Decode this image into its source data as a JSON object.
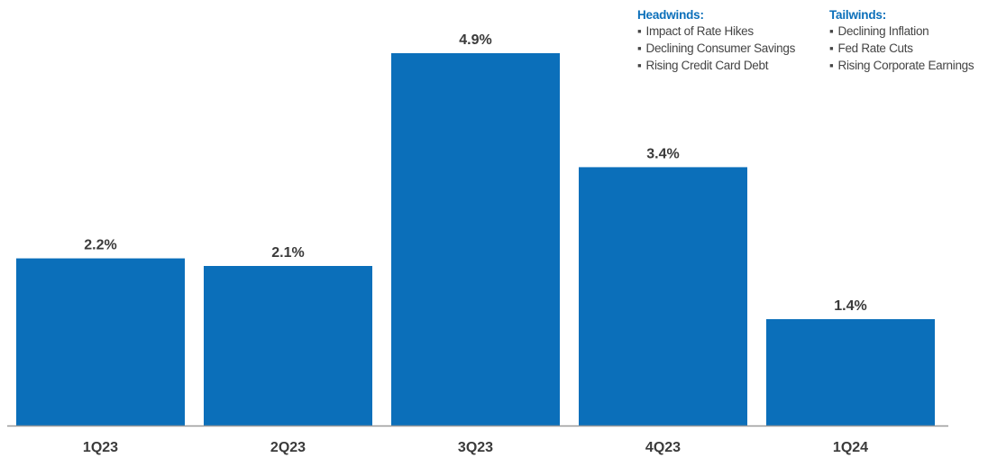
{
  "chart_data": {
    "type": "bar",
    "categories": [
      "1Q23",
      "2Q23",
      "3Q23",
      "4Q23",
      "1Q24"
    ],
    "values": [
      2.2,
      2.1,
      4.9,
      3.4,
      1.4
    ],
    "value_labels": [
      "2.2%",
      "2.1%",
      "4.9%",
      "3.4%",
      "1.4%"
    ],
    "ylim": [
      0,
      5.5
    ],
    "grid": false,
    "bar_color": "#0b6fba",
    "axis_color": "#9a9a9a"
  },
  "annotations": {
    "headwinds": {
      "title": "Headwinds:",
      "items": [
        "Impact of Rate Hikes",
        "Declining Consumer Savings",
        "Rising Credit Card Debt"
      ]
    },
    "tailwinds": {
      "title": "Tailwinds:",
      "items": [
        "Declining Inflation",
        "Fed Rate Cuts",
        "Rising Corporate Earnings"
      ]
    },
    "bullet_glyph": "▪"
  }
}
